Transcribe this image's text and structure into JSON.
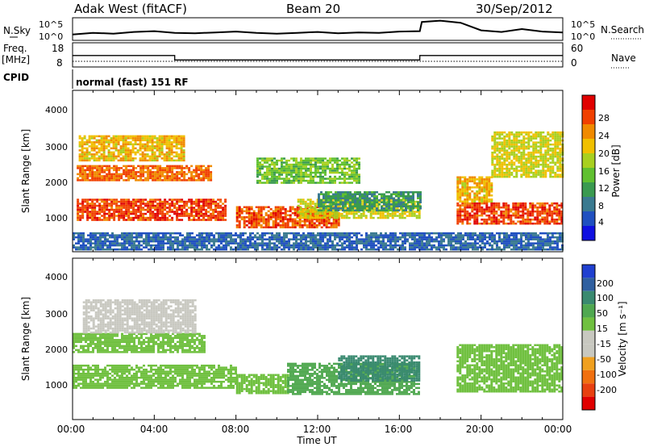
{
  "header": {
    "radar": "Adak West (fitACF)",
    "beam": "Beam 20",
    "date": "30/Sep/2012"
  },
  "noise_panel": {
    "left_label": "N.Sky",
    "right_label": "N.Search",
    "left_ticks": [
      "10^5",
      "10^0"
    ],
    "right_ticks": [
      "10^5",
      "10^0"
    ]
  },
  "freq_panel": {
    "left_label_top": "Freq.",
    "left_label_unit": "[MHz]",
    "right_label": "Nave",
    "left_ticks": [
      "18",
      "8"
    ],
    "right_ticks": [
      "60",
      "0"
    ]
  },
  "cpid": {
    "label": "CPID",
    "text": "normal (fast) 151 RF"
  },
  "x_axis": {
    "label": "Time UT",
    "ticks": [
      "00:00",
      "04:00",
      "08:00",
      "12:00",
      "16:00",
      "20:00",
      "00:00"
    ]
  },
  "power_panel": {
    "ylabel": "Slant Range [km]",
    "yticks": [
      "1000",
      "2000",
      "3000",
      "4000"
    ],
    "cbar_label": "Power [dB]",
    "cbar_ticks": [
      "4",
      "8",
      "12",
      "16",
      "20",
      "24",
      "28"
    ],
    "cbar_colors": [
      "#1010e0",
      "#2050c0",
      "#3a7a90",
      "#3a9a50",
      "#60c030",
      "#a8d020",
      "#f0c000",
      "#f08a00",
      "#f04000",
      "#e00000"
    ]
  },
  "velocity_panel": {
    "ylabel": "Slant Range [km]",
    "yticks": [
      "1000",
      "2000",
      "3000",
      "4000"
    ],
    "cbar_label": "Velocity [m s⁻¹]",
    "cbar_ticks": [
      "200",
      "100",
      "50",
      "15",
      "-15",
      "-50",
      "-100",
      "-200"
    ],
    "cbar_colors": [
      "#2040d0",
      "#3060a0",
      "#3a8a70",
      "#50a850",
      "#70c040",
      "#c8c8c0",
      "#c8c8c0",
      "#f0a020",
      "#f07010",
      "#e84010",
      "#e00000"
    ]
  },
  "chart_data": {
    "type": "heatmap",
    "x_range_hours": [
      0,
      24
    ],
    "y_range_km": [
      180,
      4500
    ],
    "noise_sky_trace": [
      [
        0.0,
        1.2
      ],
      [
        1.0,
        1.6
      ],
      [
        2.0,
        1.4
      ],
      [
        3.0,
        1.8
      ],
      [
        4.0,
        2.0
      ],
      [
        5.0,
        1.6
      ],
      [
        6.0,
        1.5
      ],
      [
        7.0,
        1.7
      ],
      [
        8.0,
        1.9
      ],
      [
        9.0,
        1.6
      ],
      [
        10.0,
        1.4
      ],
      [
        11.0,
        1.6
      ],
      [
        12.0,
        1.8
      ],
      [
        13.0,
        1.5
      ],
      [
        14.0,
        1.7
      ],
      [
        15.0,
        1.6
      ],
      [
        16.0,
        1.9
      ],
      [
        17.0,
        2.0
      ],
      [
        17.1,
        4.2
      ],
      [
        18.0,
        4.5
      ],
      [
        19.0,
        4.0
      ],
      [
        20.0,
        2.2
      ],
      [
        21.0,
        1.8
      ],
      [
        22.0,
        2.5
      ],
      [
        23.0,
        1.9
      ],
      [
        24.0,
        1.7
      ]
    ],
    "frequency_trace_mhz": [
      [
        0.0,
        13.5
      ],
      [
        5.0,
        13.5
      ],
      [
        5.0,
        11.2
      ],
      [
        17.0,
        11.2
      ],
      [
        17.0,
        13.5
      ],
      [
        24.0,
        13.5
      ]
    ],
    "nave_trace": [
      [
        0.0,
        15
      ],
      [
        24.0,
        15
      ]
    ],
    "power_regions": [
      {
        "t0": 0.2,
        "t1": 7.5,
        "r0": 1050,
        "r1": 1600,
        "level": 28
      },
      {
        "t0": 0.2,
        "t1": 6.8,
        "r0": 2100,
        "r1": 2500,
        "level": 26
      },
      {
        "t0": 0.3,
        "t1": 5.5,
        "r0": 2600,
        "r1": 3300,
        "level": 22
      },
      {
        "t0": 8.0,
        "t1": 13.0,
        "r0": 850,
        "r1": 1400,
        "level": 27
      },
      {
        "t0": 11.0,
        "t1": 17.0,
        "r0": 1100,
        "r1": 1600,
        "level": 20
      },
      {
        "t0": 12.0,
        "t1": 17.0,
        "r0": 1300,
        "r1": 1800,
        "level": 12
      },
      {
        "t0": 9.0,
        "t1": 14.0,
        "r0": 2000,
        "r1": 2700,
        "level": 16
      },
      {
        "t0": 18.8,
        "t1": 24.0,
        "r0": 950,
        "r1": 1500,
        "level": 28
      },
      {
        "t0": 18.8,
        "t1": 20.5,
        "r0": 1500,
        "r1": 2200,
        "level": 22
      },
      {
        "t0": 20.5,
        "t1": 24.0,
        "r0": 2200,
        "r1": 3400,
        "level": 20
      },
      {
        "t0": 0.0,
        "t1": 24.0,
        "r0": 250,
        "r1": 700,
        "level": 8
      }
    ],
    "velocity_regions": [
      {
        "t0": 0.0,
        "t1": 8.0,
        "r0": 1050,
        "r1": 1650,
        "level": 0
      },
      {
        "t0": 0.0,
        "t1": 6.5,
        "r0": 2000,
        "r1": 2500,
        "level": 0
      },
      {
        "t0": 8.0,
        "t1": 10.5,
        "r0": 900,
        "r1": 1400,
        "level": 0
      },
      {
        "t0": 10.5,
        "t1": 17.0,
        "r0": 850,
        "r1": 1700,
        "level": 40
      },
      {
        "t0": 13.0,
        "t1": 17.0,
        "r0": 1200,
        "r1": 1900,
        "level": 90
      },
      {
        "t0": 18.8,
        "t1": 24.0,
        "r0": 950,
        "r1": 2200,
        "level": 0
      },
      {
        "t0": 0.5,
        "t1": 6.0,
        "r0": 2500,
        "r1": 3400,
        "level": -40
      }
    ]
  }
}
